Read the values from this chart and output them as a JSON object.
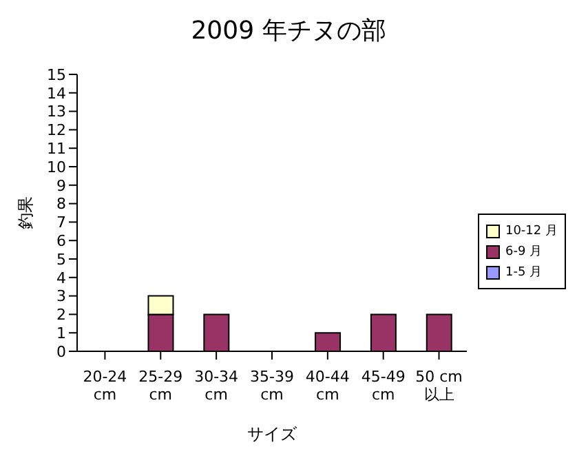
{
  "chart_data": {
    "type": "bar",
    "title": "2009 年チヌの部",
    "xlabel": "サイズ",
    "ylabel": "釣果",
    "categories": [
      "20-24 cm",
      "25-29 cm",
      "30-34 cm",
      "35-39 cm",
      "40-44 cm",
      "45-49 cm",
      "50 cm 以上"
    ],
    "stacked": true,
    "series": [
      {
        "name": "1-5 月",
        "color": "#9999ff",
        "values": [
          0,
          0,
          0,
          0,
          0,
          0,
          0
        ]
      },
      {
        "name": "6-9 月",
        "color": "#993366",
        "values": [
          0,
          2,
          2,
          0,
          1,
          2,
          2
        ]
      },
      {
        "name": "10-12 月",
        "color": "#ffffcc",
        "values": [
          0,
          1,
          0,
          0,
          0,
          0,
          0
        ]
      }
    ],
    "ylim": [
      0,
      15
    ],
    "yticks": [
      0,
      1,
      2,
      3,
      4,
      5,
      6,
      7,
      8,
      9,
      10,
      11,
      12,
      13,
      14,
      15
    ],
    "grid": false,
    "legend": "right"
  }
}
